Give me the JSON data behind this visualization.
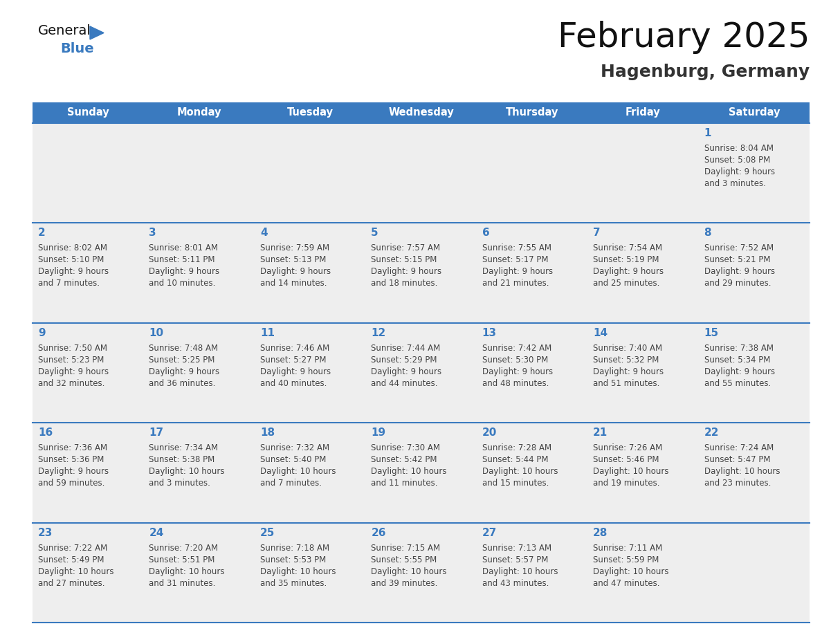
{
  "title": "February 2025",
  "subtitle": "Hagenburg, Germany",
  "days_of_week": [
    "Sunday",
    "Monday",
    "Tuesday",
    "Wednesday",
    "Thursday",
    "Friday",
    "Saturday"
  ],
  "header_bg": "#3a7abf",
  "header_text": "#ffffff",
  "cell_bg_gray": "#eeeeee",
  "cell_bg_white": "#ffffff",
  "grid_line_color": "#3a7abf",
  "day_num_color": "#3a7abf",
  "text_color": "#444444",
  "title_color": "#111111",
  "subtitle_color": "#333333",
  "calendar": [
    [
      {
        "day": null,
        "info": null
      },
      {
        "day": null,
        "info": null
      },
      {
        "day": null,
        "info": null
      },
      {
        "day": null,
        "info": null
      },
      {
        "day": null,
        "info": null
      },
      {
        "day": null,
        "info": null
      },
      {
        "day": 1,
        "info": "Sunrise: 8:04 AM\nSunset: 5:08 PM\nDaylight: 9 hours\nand 3 minutes."
      }
    ],
    [
      {
        "day": 2,
        "info": "Sunrise: 8:02 AM\nSunset: 5:10 PM\nDaylight: 9 hours\nand 7 minutes."
      },
      {
        "day": 3,
        "info": "Sunrise: 8:01 AM\nSunset: 5:11 PM\nDaylight: 9 hours\nand 10 minutes."
      },
      {
        "day": 4,
        "info": "Sunrise: 7:59 AM\nSunset: 5:13 PM\nDaylight: 9 hours\nand 14 minutes."
      },
      {
        "day": 5,
        "info": "Sunrise: 7:57 AM\nSunset: 5:15 PM\nDaylight: 9 hours\nand 18 minutes."
      },
      {
        "day": 6,
        "info": "Sunrise: 7:55 AM\nSunset: 5:17 PM\nDaylight: 9 hours\nand 21 minutes."
      },
      {
        "day": 7,
        "info": "Sunrise: 7:54 AM\nSunset: 5:19 PM\nDaylight: 9 hours\nand 25 minutes."
      },
      {
        "day": 8,
        "info": "Sunrise: 7:52 AM\nSunset: 5:21 PM\nDaylight: 9 hours\nand 29 minutes."
      }
    ],
    [
      {
        "day": 9,
        "info": "Sunrise: 7:50 AM\nSunset: 5:23 PM\nDaylight: 9 hours\nand 32 minutes."
      },
      {
        "day": 10,
        "info": "Sunrise: 7:48 AM\nSunset: 5:25 PM\nDaylight: 9 hours\nand 36 minutes."
      },
      {
        "day": 11,
        "info": "Sunrise: 7:46 AM\nSunset: 5:27 PM\nDaylight: 9 hours\nand 40 minutes."
      },
      {
        "day": 12,
        "info": "Sunrise: 7:44 AM\nSunset: 5:29 PM\nDaylight: 9 hours\nand 44 minutes."
      },
      {
        "day": 13,
        "info": "Sunrise: 7:42 AM\nSunset: 5:30 PM\nDaylight: 9 hours\nand 48 minutes."
      },
      {
        "day": 14,
        "info": "Sunrise: 7:40 AM\nSunset: 5:32 PM\nDaylight: 9 hours\nand 51 minutes."
      },
      {
        "day": 15,
        "info": "Sunrise: 7:38 AM\nSunset: 5:34 PM\nDaylight: 9 hours\nand 55 minutes."
      }
    ],
    [
      {
        "day": 16,
        "info": "Sunrise: 7:36 AM\nSunset: 5:36 PM\nDaylight: 9 hours\nand 59 minutes."
      },
      {
        "day": 17,
        "info": "Sunrise: 7:34 AM\nSunset: 5:38 PM\nDaylight: 10 hours\nand 3 minutes."
      },
      {
        "day": 18,
        "info": "Sunrise: 7:32 AM\nSunset: 5:40 PM\nDaylight: 10 hours\nand 7 minutes."
      },
      {
        "day": 19,
        "info": "Sunrise: 7:30 AM\nSunset: 5:42 PM\nDaylight: 10 hours\nand 11 minutes."
      },
      {
        "day": 20,
        "info": "Sunrise: 7:28 AM\nSunset: 5:44 PM\nDaylight: 10 hours\nand 15 minutes."
      },
      {
        "day": 21,
        "info": "Sunrise: 7:26 AM\nSunset: 5:46 PM\nDaylight: 10 hours\nand 19 minutes."
      },
      {
        "day": 22,
        "info": "Sunrise: 7:24 AM\nSunset: 5:47 PM\nDaylight: 10 hours\nand 23 minutes."
      }
    ],
    [
      {
        "day": 23,
        "info": "Sunrise: 7:22 AM\nSunset: 5:49 PM\nDaylight: 10 hours\nand 27 minutes."
      },
      {
        "day": 24,
        "info": "Sunrise: 7:20 AM\nSunset: 5:51 PM\nDaylight: 10 hours\nand 31 minutes."
      },
      {
        "day": 25,
        "info": "Sunrise: 7:18 AM\nSunset: 5:53 PM\nDaylight: 10 hours\nand 35 minutes."
      },
      {
        "day": 26,
        "info": "Sunrise: 7:15 AM\nSunset: 5:55 PM\nDaylight: 10 hours\nand 39 minutes."
      },
      {
        "day": 27,
        "info": "Sunrise: 7:13 AM\nSunset: 5:57 PM\nDaylight: 10 hours\nand 43 minutes."
      },
      {
        "day": 28,
        "info": "Sunrise: 7:11 AM\nSunset: 5:59 PM\nDaylight: 10 hours\nand 47 minutes."
      },
      {
        "day": null,
        "info": null
      }
    ]
  ],
  "logo_text_general": "General",
  "logo_text_blue": "Blue",
  "logo_color_general": "#111111",
  "logo_color_blue": "#3a7abf",
  "fig_width": 11.88,
  "fig_height": 9.18,
  "dpi": 100
}
